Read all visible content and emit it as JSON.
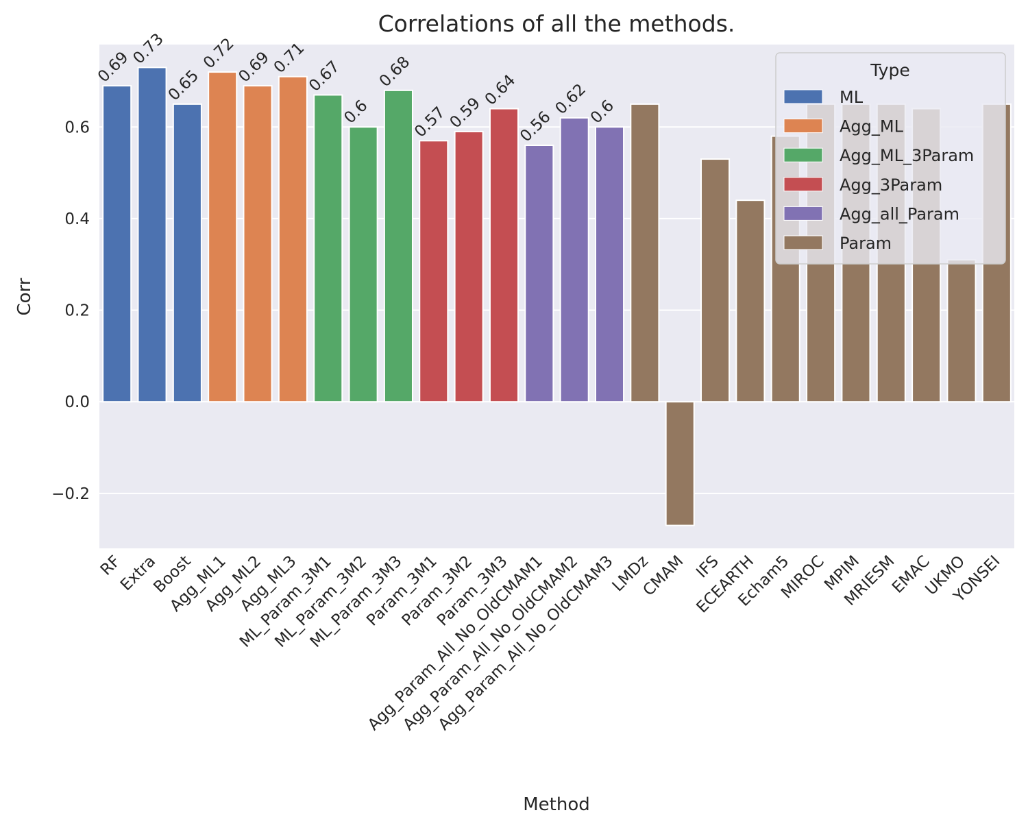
{
  "chart_data": {
    "type": "bar",
    "title": "Correlations of all the methods.",
    "xlabel": "Method",
    "ylabel": "Corr",
    "ylim": [
      -0.32,
      0.78
    ],
    "yticks": [
      -0.2,
      0.0,
      0.2,
      0.4,
      0.6
    ],
    "ytick_labels": [
      "−0.2",
      "0.0",
      "0.2",
      "0.4",
      "0.6"
    ],
    "grid": true,
    "legend": {
      "title": "Type",
      "placement": "top-right",
      "entries": [
        {
          "name": "ML",
          "color": "#4c72b0"
        },
        {
          "name": "Agg_ML",
          "color": "#dd8452"
        },
        {
          "name": "Agg_ML_3Param",
          "color": "#55a868"
        },
        {
          "name": "Agg_3Param",
          "color": "#c44e52"
        },
        {
          "name": "Agg_all_Param",
          "color": "#8172b3"
        },
        {
          "name": "Param",
          "color": "#937860"
        }
      ]
    },
    "categories": [
      "RF",
      "Extra",
      "Boost",
      "Agg_ML1",
      "Agg_ML2",
      "Agg_ML3",
      "ML_Param_3M1",
      "ML_Param_3M2",
      "ML_Param_3M3",
      "Param_3M1",
      "Param_3M2",
      "Param_3M3",
      "Agg_Param_All_No_OldCMAM1",
      "Agg_Param_All_No_OldCMAM2",
      "Agg_Param_All_No_OldCMAM3",
      "LMDz",
      "CMAM",
      "IFS",
      "ECEARTH",
      "Echam5",
      "MIROC",
      "MPIM",
      "MRIESM",
      "EMAC",
      "UKMO",
      "YONSEI"
    ],
    "values": [
      0.69,
      0.73,
      0.65,
      0.72,
      0.69,
      0.71,
      0.67,
      0.6,
      0.68,
      0.57,
      0.59,
      0.64,
      0.56,
      0.62,
      0.6,
      0.65,
      -0.27,
      0.53,
      0.44,
      0.58,
      0.65,
      0.65,
      0.65,
      0.64,
      0.31,
      0.65
    ],
    "types": [
      "ML",
      "ML",
      "ML",
      "Agg_ML",
      "Agg_ML",
      "Agg_ML",
      "Agg_ML_3Param",
      "Agg_ML_3Param",
      "Agg_ML_3Param",
      "Agg_3Param",
      "Agg_3Param",
      "Agg_3Param",
      "Agg_all_Param",
      "Agg_all_Param",
      "Agg_all_Param",
      "Param",
      "Param",
      "Param",
      "Param",
      "Param",
      "Param",
      "Param",
      "Param",
      "Param",
      "Param",
      "Param"
    ],
    "data_labels": [
      "0.69",
      "0.73",
      "0.65",
      "0.72",
      "0.69",
      "0.71",
      "0.67",
      "0.6",
      "0.68",
      "0.57",
      "0.59",
      "0.64",
      "0.56",
      "0.62",
      "0.6",
      "",
      "",
      "",
      "",
      "",
      "",
      "",
      "",
      "",
      "",
      ""
    ]
  }
}
